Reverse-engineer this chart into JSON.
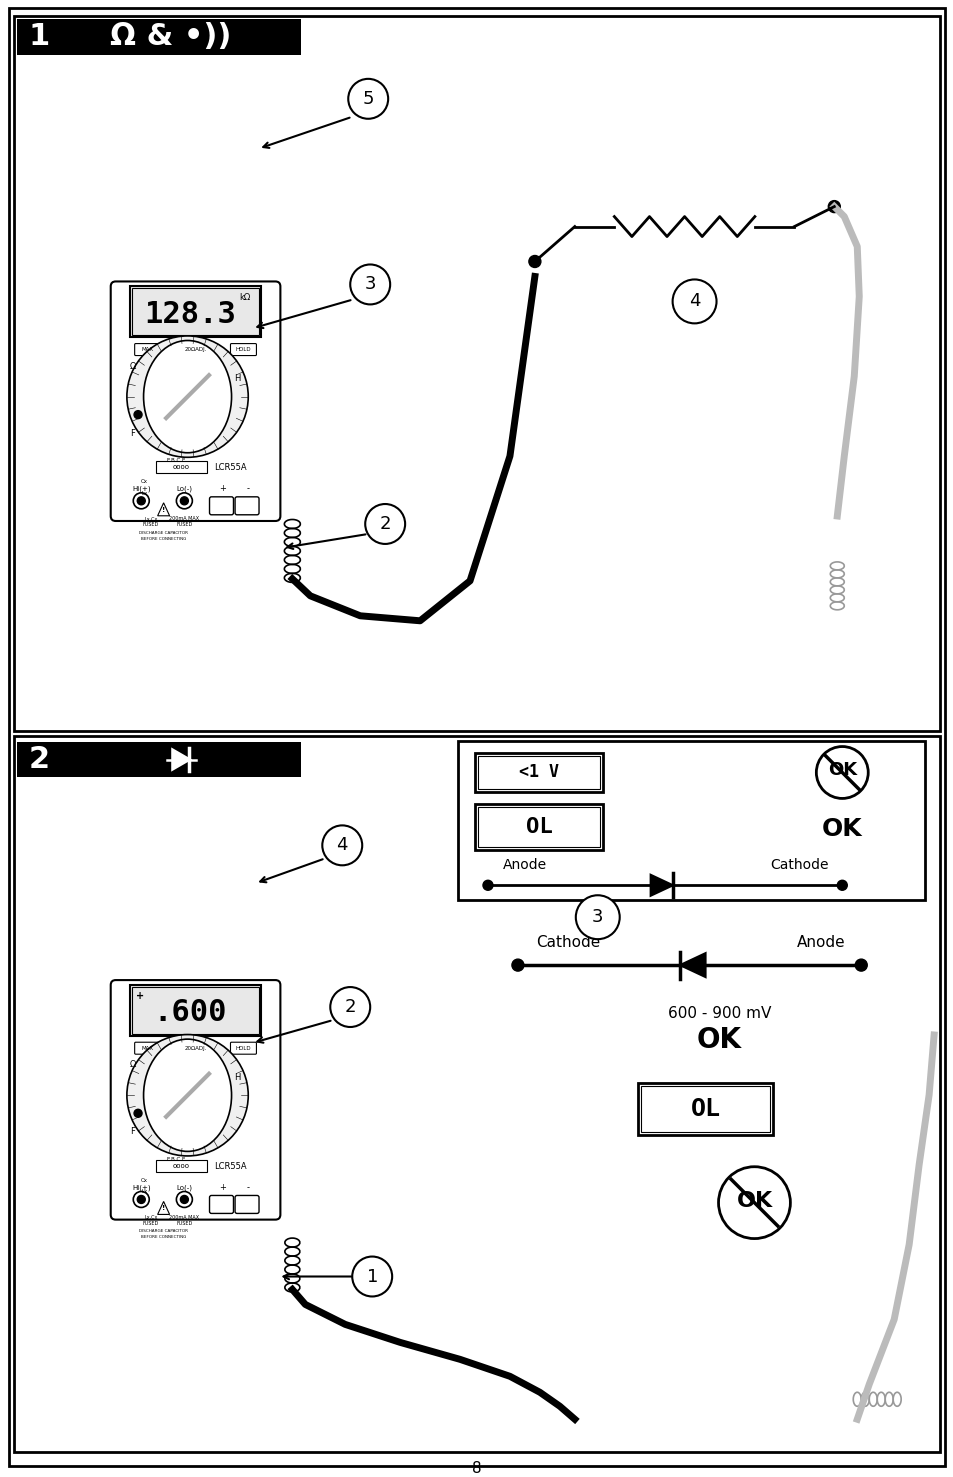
{
  "bg_color": "#ffffff",
  "border_color": "#000000",
  "page_num": "8",
  "panel1_label": "1",
  "panel1_symbol": "Ω & •))",
  "panel1_display": "128.3",
  "panel1_unit": "kΩ",
  "panel2_label": "2",
  "panel2_display": ".600",
  "callout_r": 20,
  "callout_fontsize": 13,
  "header_fontsize": 22,
  "display_fontsize": 22,
  "body_color": "#ffffff",
  "display_bg": "#e8e8e8"
}
